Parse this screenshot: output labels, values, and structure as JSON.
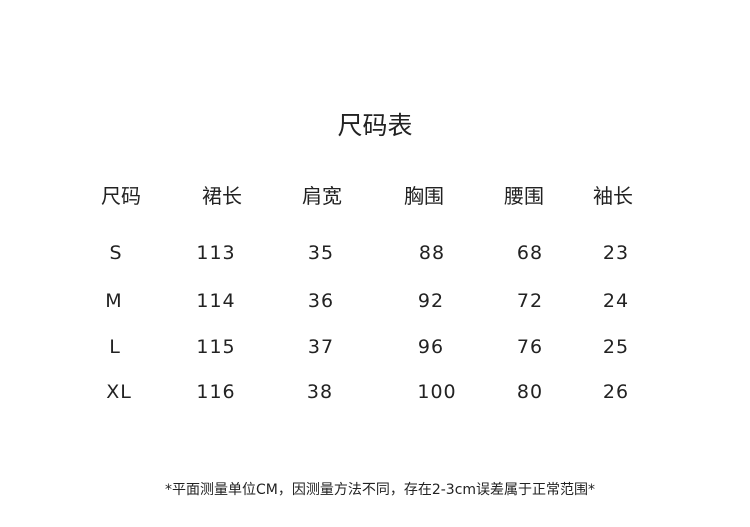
{
  "title": "尺码表",
  "table": {
    "headers": [
      "尺码",
      "裙长",
      "肩宽",
      "胸围",
      "腰围",
      "袖长"
    ],
    "rows": [
      [
        "S",
        "113",
        "35",
        "88",
        "68",
        "23"
      ],
      [
        "M",
        "114",
        "36",
        "92",
        "72",
        "24"
      ],
      [
        "L",
        "115",
        "37",
        "96",
        "76",
        "25"
      ],
      [
        "XL",
        "116",
        "38",
        "100",
        "80",
        "26"
      ]
    ]
  },
  "note": "*平面测量单位CM，因测量方法不同，存在2-3cm误差属于正常范围*"
}
